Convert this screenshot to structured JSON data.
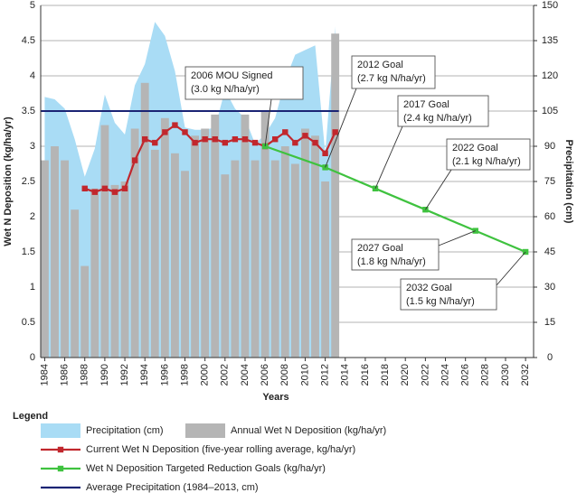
{
  "chart_data": {
    "type": "combo",
    "x_label": "Years",
    "y_label": "Wet N Deposition (kg/ha/yr)",
    "y2_label": "Precipitation (cm)",
    "xlim": [
      1983.6,
      2032.8
    ],
    "xticks": [
      1984,
      1986,
      1988,
      1990,
      1992,
      1994,
      1996,
      1998,
      2000,
      2002,
      2004,
      2006,
      2008,
      2010,
      2012,
      2014,
      2016,
      2018,
      2020,
      2022,
      2024,
      2026,
      2028,
      2030,
      2032
    ],
    "ylim": [
      0,
      5
    ],
    "yticks": [
      0,
      0.5,
      1,
      1.5,
      2,
      2.5,
      3,
      3.5,
      4,
      4.5,
      5
    ],
    "y2lim": [
      0,
      150
    ],
    "y2ticks": [
      0,
      15,
      30,
      45,
      60,
      75,
      90,
      105,
      120,
      135,
      150
    ],
    "grid": true,
    "legend_title": "Legend",
    "series": [
      {
        "name": "Precipitation (cm)",
        "type": "area",
        "axis": "y2",
        "color": "#a9dcf5",
        "x": [
          1984,
          1985,
          1986,
          1987,
          1988,
          1989,
          1990,
          1991,
          1992,
          1993,
          1994,
          1995,
          1996,
          1997,
          1998,
          1999,
          2000,
          2001,
          2002,
          2003,
          2004,
          2005,
          2006,
          2007,
          2008,
          2009,
          2010,
          2011,
          2012,
          2013
        ],
        "values": [
          111,
          110,
          106,
          93,
          77,
          89,
          112,
          100,
          95,
          116,
          125,
          143,
          137,
          122,
          98,
          97,
          97,
          98,
          114,
          106,
          102,
          91,
          95,
          102,
          118,
          129,
          131,
          133,
          87,
          141
        ]
      },
      {
        "name": "Annual Wet N Deposition (kg/ha/yr)",
        "type": "bar",
        "color": "#b5b5b5",
        "x": [
          1984,
          1985,
          1986,
          1987,
          1988,
          1989,
          1990,
          1991,
          1992,
          1993,
          1994,
          1995,
          1996,
          1997,
          1998,
          1999,
          2000,
          2001,
          2002,
          2003,
          2004,
          2005,
          2006,
          2007,
          2008,
          2009,
          2010,
          2011,
          2012,
          2013
        ],
        "values": [
          2.8,
          3.0,
          2.8,
          2.1,
          1.3,
          2.4,
          3.3,
          2.45,
          2.5,
          3.25,
          3.9,
          2.95,
          3.4,
          2.9,
          2.65,
          3.15,
          3.25,
          3.45,
          2.6,
          2.8,
          3.45,
          2.8,
          3.5,
          2.8,
          3.0,
          2.75,
          3.25,
          3.15,
          2.5,
          4.6
        ]
      },
      {
        "name": "Current Wet N Deposition (five-year rolling average, kg/ha/yr)",
        "type": "line",
        "color": "#c1272d",
        "x": [
          1988,
          1989,
          1990,
          1991,
          1992,
          1993,
          1994,
          1995,
          1996,
          1997,
          1998,
          1999,
          2000,
          2001,
          2002,
          2003,
          2004,
          2005,
          2006,
          2007,
          2008,
          2009,
          2010,
          2011,
          2012,
          2013
        ],
        "values": [
          2.4,
          2.35,
          2.4,
          2.35,
          2.4,
          2.8,
          3.1,
          3.05,
          3.2,
          3.3,
          3.2,
          3.05,
          3.1,
          3.1,
          3.05,
          3.1,
          3.1,
          3.05,
          3.0,
          3.1,
          3.2,
          3.05,
          3.15,
          3.05,
          2.9,
          3.2
        ]
      },
      {
        "name": "Wet N Deposition Targeted Reduction Goals (kg/ha/yr)",
        "type": "line",
        "color": "#3fc23f",
        "x": [
          2006,
          2012,
          2017,
          2022,
          2027,
          2032
        ],
        "values": [
          3.0,
          2.7,
          2.4,
          2.1,
          1.8,
          1.5
        ]
      },
      {
        "name": "Average Precipitation (1984–2013, cm)",
        "type": "hline",
        "axis": "y2",
        "color": "#1b2474",
        "x": [
          1984,
          2013
        ],
        "values": [
          105,
          105
        ]
      }
    ],
    "annotations": [
      {
        "text": [
          "2006 MOU Signed",
          "(3.0 kg N/ha/yr)"
        ]
      },
      {
        "text": [
          "2012 Goal",
          "(2.7 kg N/ha/yr)"
        ]
      },
      {
        "text": [
          "2017 Goal",
          "(2.4 kg N/ha/yr)"
        ]
      },
      {
        "text": [
          "2022 Goal",
          "(2.1 kg N/ha/yr)"
        ]
      },
      {
        "text": [
          "2027 Goal",
          "(1.8 kg N/ha/yr)"
        ]
      },
      {
        "text": [
          "2032 Goal",
          "(1.5 kg N/ha/yr)"
        ]
      }
    ]
  }
}
